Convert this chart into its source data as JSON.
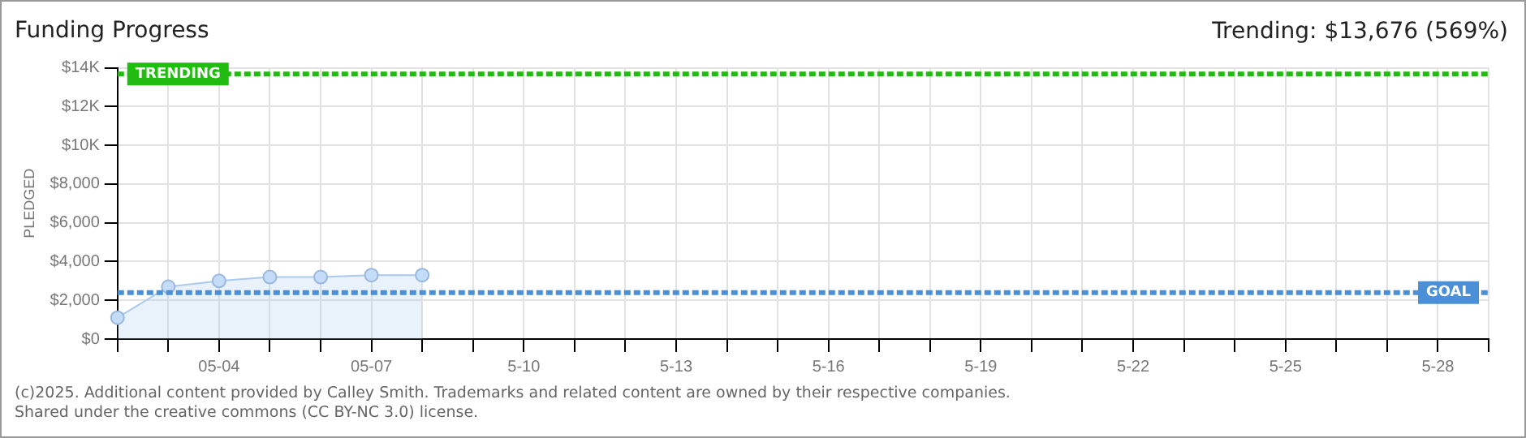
{
  "chart_data": {
    "type": "area",
    "title": "Funding Progress",
    "ylabel": "PLEDGED",
    "annotations": [
      "Trending: $13,676 (569%)",
      "(c)2025. Additional content provided by Calley Smith. Trademarks and related content are owned by their respective companies.",
      "Shared under the creative commons (CC BY-NC 3.0) license."
    ],
    "categories": [
      null,
      null,
      "05-04",
      null,
      null,
      "05-07",
      null,
      null,
      "5-10",
      null,
      null,
      "5-13",
      null,
      null,
      "5-16",
      null,
      null,
      "5-19",
      null,
      null,
      "5-22",
      null,
      null,
      "5-25",
      null,
      null,
      "5-28",
      null
    ],
    "series": [
      {
        "color": "#a9c9ef",
        "values": [
          1100,
          2700,
          3000,
          3200,
          3200,
          3300,
          3300,
          null,
          null,
          null,
          null,
          null,
          null,
          null,
          null,
          null,
          null,
          null,
          null,
          null,
          null,
          null,
          null,
          null,
          null,
          null,
          null,
          null
        ]
      }
    ],
    "ylim": [
      0,
      14000
    ],
    "yticks": [
      {
        "value": 0,
        "label": "$0"
      },
      {
        "value": 2000,
        "label": "$2,000"
      },
      {
        "value": 4000,
        "label": "$4,000"
      },
      {
        "value": 6000,
        "label": "$6,000"
      },
      {
        "value": 8000,
        "label": "$8,000"
      },
      {
        "value": 10000,
        "label": "$10K"
      },
      {
        "value": 12000,
        "label": "$12K"
      },
      {
        "value": 14000,
        "label": "$14K"
      }
    ],
    "ref_lines": [
      {
        "axis": "y",
        "value": 13676,
        "label": "TRENDING",
        "color": "#22bb11",
        "line_style": "dashed"
      },
      {
        "axis": "y",
        "value": 2400,
        "label": "GOAL",
        "color": "#4a90d9",
        "line_style": "dashed"
      }
    ],
    "grid": true,
    "marker": "circle",
    "legend": false
  }
}
